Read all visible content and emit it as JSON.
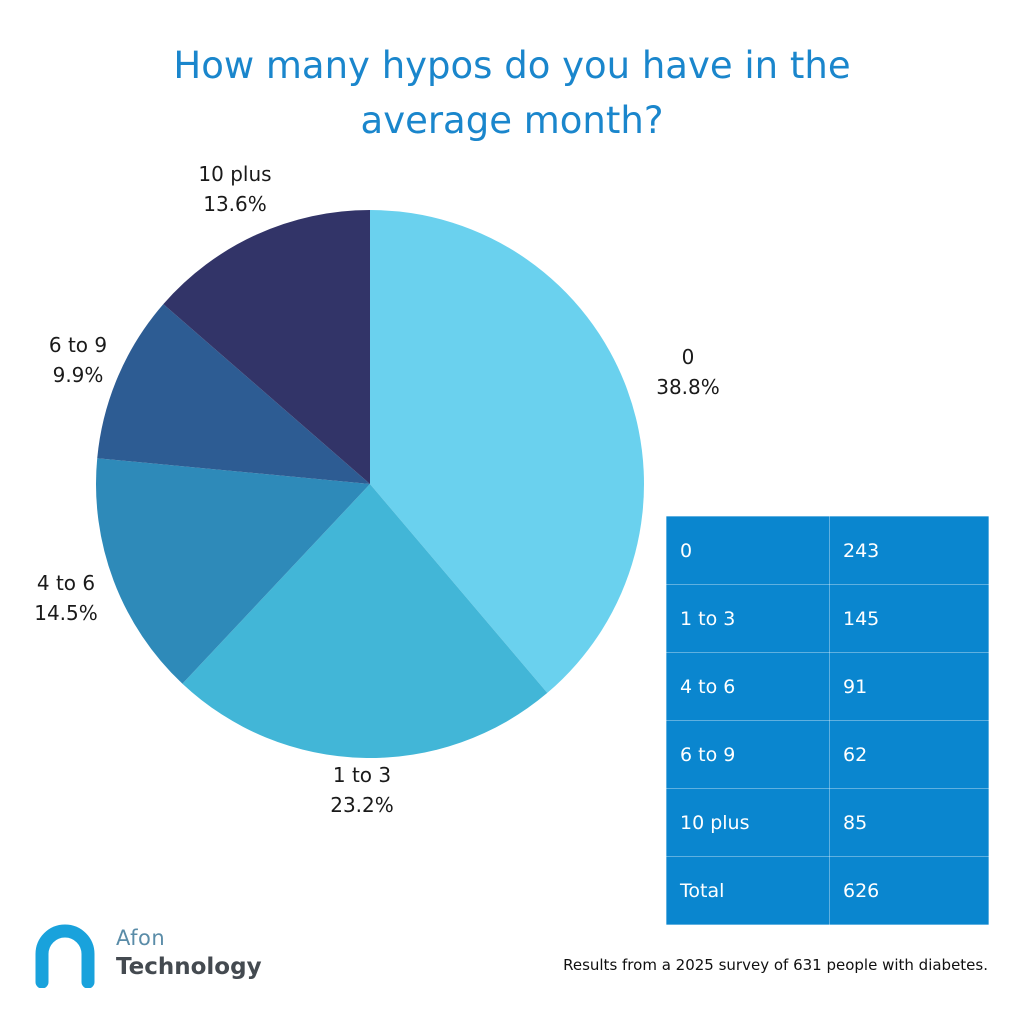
{
  "chart_data": {
    "type": "pie",
    "title": "How many hypos do you have in the average month?",
    "slices": [
      {
        "label": "0",
        "percent_label": "38.8%",
        "value": 38.8,
        "color": "#6ad1ee"
      },
      {
        "label": "1 to 3",
        "percent_label": "23.2%",
        "value": 23.2,
        "color": "#42b6d7"
      },
      {
        "label": "4 to 6",
        "percent_label": "14.5%",
        "value": 14.5,
        "color": "#2e8ab9"
      },
      {
        "label": "6 to 9",
        "percent_label": "9.9%",
        "value": 9.9,
        "color": "#2d5c93"
      },
      {
        "label": "10 plus",
        "percent_label": "13.6%",
        "value": 13.6,
        "color": "#323468"
      }
    ]
  },
  "table": {
    "rows": [
      {
        "label": "0",
        "count": "243"
      },
      {
        "label": "1 to 3",
        "count": "145"
      },
      {
        "label": "4 to 6",
        "count": "91"
      },
      {
        "label": "6 to 9",
        "count": "62"
      },
      {
        "label": "10 plus",
        "count": "85"
      },
      {
        "label": "Total",
        "count": "626"
      }
    ],
    "background": "#0a86cf"
  },
  "logo": {
    "line1": "Afon",
    "line2": "Technology"
  },
  "footnote": "Results from a 2025 survey of 631 people with diabetes."
}
